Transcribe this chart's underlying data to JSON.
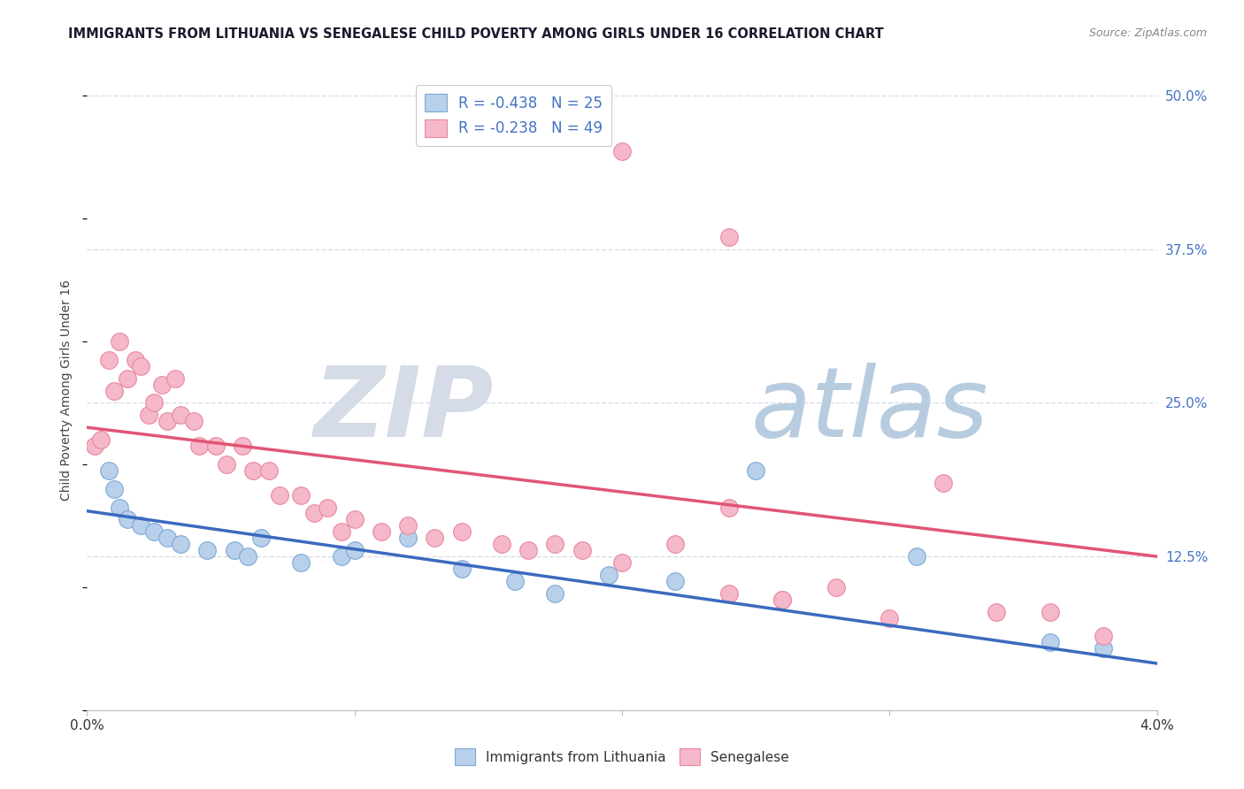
{
  "title": "IMMIGRANTS FROM LITHUANIA VS SENEGALESE CHILD POVERTY AMONG GIRLS UNDER 16 CORRELATION CHART",
  "source": "Source: ZipAtlas.com",
  "ylabel": "Child Poverty Among Girls Under 16",
  "xlim": [
    0.0,
    0.04
  ],
  "ylim": [
    0.0,
    0.52
  ],
  "yticks": [
    0.125,
    0.25,
    0.375,
    0.5
  ],
  "ytick_labels": [
    "12.5%",
    "25.0%",
    "37.5%",
    "50.0%"
  ],
  "legend_r_blue": "R = -0.438",
  "legend_n_blue": "N = 25",
  "legend_r_pink": "R = -0.238",
  "legend_n_pink": "N = 49",
  "label_blue": "Immigrants from Lithuania",
  "label_pink": "Senegalese",
  "blue_scatter_color": "#b8d0ea",
  "pink_scatter_color": "#f5b8ca",
  "blue_edge_color": "#7ca8d8",
  "pink_edge_color": "#e8889a",
  "line_blue": "#3a6abf",
  "line_pink": "#e05575",
  "background_color": "#ffffff",
  "grid_color": "#d8dde8",
  "title_color": "#1a1a2e",
  "axis_label_color": "#444444",
  "tick_color": "#4472c4",
  "watermark_zip_color": "#d5dce8",
  "watermark_atlas_color": "#b8cce0",
  "blue_line_x": [
    0.0,
    0.04
  ],
  "blue_line_y": [
    0.162,
    0.038
  ],
  "pink_line_x": [
    0.0,
    0.04
  ],
  "pink_line_y": [
    0.23,
    0.125
  ],
  "blue_points_x": [
    0.0008,
    0.001,
    0.0012,
    0.0015,
    0.002,
    0.0025,
    0.003,
    0.0035,
    0.0045,
    0.0055,
    0.006,
    0.0065,
    0.008,
    0.0095,
    0.01,
    0.012,
    0.014,
    0.016,
    0.0175,
    0.0195,
    0.022,
    0.025,
    0.031,
    0.036,
    0.038
  ],
  "blue_points_y": [
    0.195,
    0.18,
    0.165,
    0.155,
    0.15,
    0.145,
    0.14,
    0.135,
    0.13,
    0.13,
    0.125,
    0.14,
    0.12,
    0.125,
    0.13,
    0.14,
    0.115,
    0.105,
    0.095,
    0.11,
    0.105,
    0.195,
    0.125,
    0.055,
    0.05
  ],
  "pink_points_x": [
    0.0003,
    0.0005,
    0.0008,
    0.001,
    0.0012,
    0.0015,
    0.0018,
    0.002,
    0.0023,
    0.0025,
    0.0028,
    0.003,
    0.0033,
    0.0035,
    0.004,
    0.0042,
    0.0048,
    0.0052,
    0.0058,
    0.0062,
    0.0068,
    0.0072,
    0.008,
    0.0085,
    0.009,
    0.0095,
    0.01,
    0.011,
    0.012,
    0.013,
    0.014,
    0.0155,
    0.0165,
    0.0175,
    0.0185,
    0.02,
    0.022,
    0.024,
    0.026,
    0.028,
    0.03,
    0.02,
    0.024,
    0.032,
    0.034,
    0.036,
    0.038,
    0.024,
    0.026
  ],
  "pink_points_y": [
    0.215,
    0.22,
    0.285,
    0.26,
    0.3,
    0.27,
    0.285,
    0.28,
    0.24,
    0.25,
    0.265,
    0.235,
    0.27,
    0.24,
    0.235,
    0.215,
    0.215,
    0.2,
    0.215,
    0.195,
    0.195,
    0.175,
    0.175,
    0.16,
    0.165,
    0.145,
    0.155,
    0.145,
    0.15,
    0.14,
    0.145,
    0.135,
    0.13,
    0.135,
    0.13,
    0.12,
    0.135,
    0.095,
    0.09,
    0.1,
    0.075,
    0.455,
    0.385,
    0.185,
    0.08,
    0.08,
    0.06,
    0.165,
    0.09
  ]
}
